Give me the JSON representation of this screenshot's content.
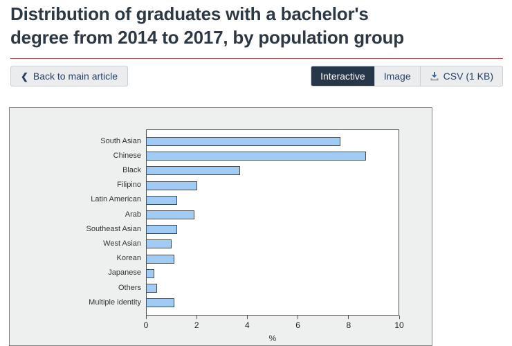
{
  "page": {
    "title": "Distribution of graduates with a bachelor's\ndegree from 2014 to 2017, by population group"
  },
  "toolbar": {
    "back_icon": "❮",
    "back_label": "Back to main article",
    "views": {
      "interactive": "Interactive",
      "image": "Image",
      "csv": "CSV (1 KB)"
    },
    "active_view": "Interactive",
    "csv_icon": "download-icon"
  },
  "chart_data": {
    "type": "bar",
    "orientation": "horizontal",
    "title": "",
    "categories": [
      "South Asian",
      "Chinese",
      "Black",
      "Filipino",
      "Latin American",
      "Arab",
      "Southeast Asian",
      "West Asian",
      "Korean",
      "Japanese",
      "Others",
      "Multiple identity"
    ],
    "values": [
      7.7,
      8.7,
      3.7,
      2.0,
      1.2,
      1.9,
      1.2,
      1.0,
      1.1,
      0.3,
      0.4,
      1.1
    ],
    "xlabel": "%",
    "ylabel": "",
    "xlim": [
      0,
      10
    ],
    "xticks": [
      0,
      2,
      4,
      6,
      8,
      10
    ],
    "grid": false,
    "legend": false
  },
  "colors": {
    "bar_fill": "#9fcbf4",
    "bar_border": "#44484c",
    "panel_bg": "#eeefef",
    "panel_border": "#7d7f82",
    "title_text": "#2d3845",
    "accent_red": "#c5505c",
    "link_blue": "#284162",
    "active_tab_bg": "#26374a"
  }
}
